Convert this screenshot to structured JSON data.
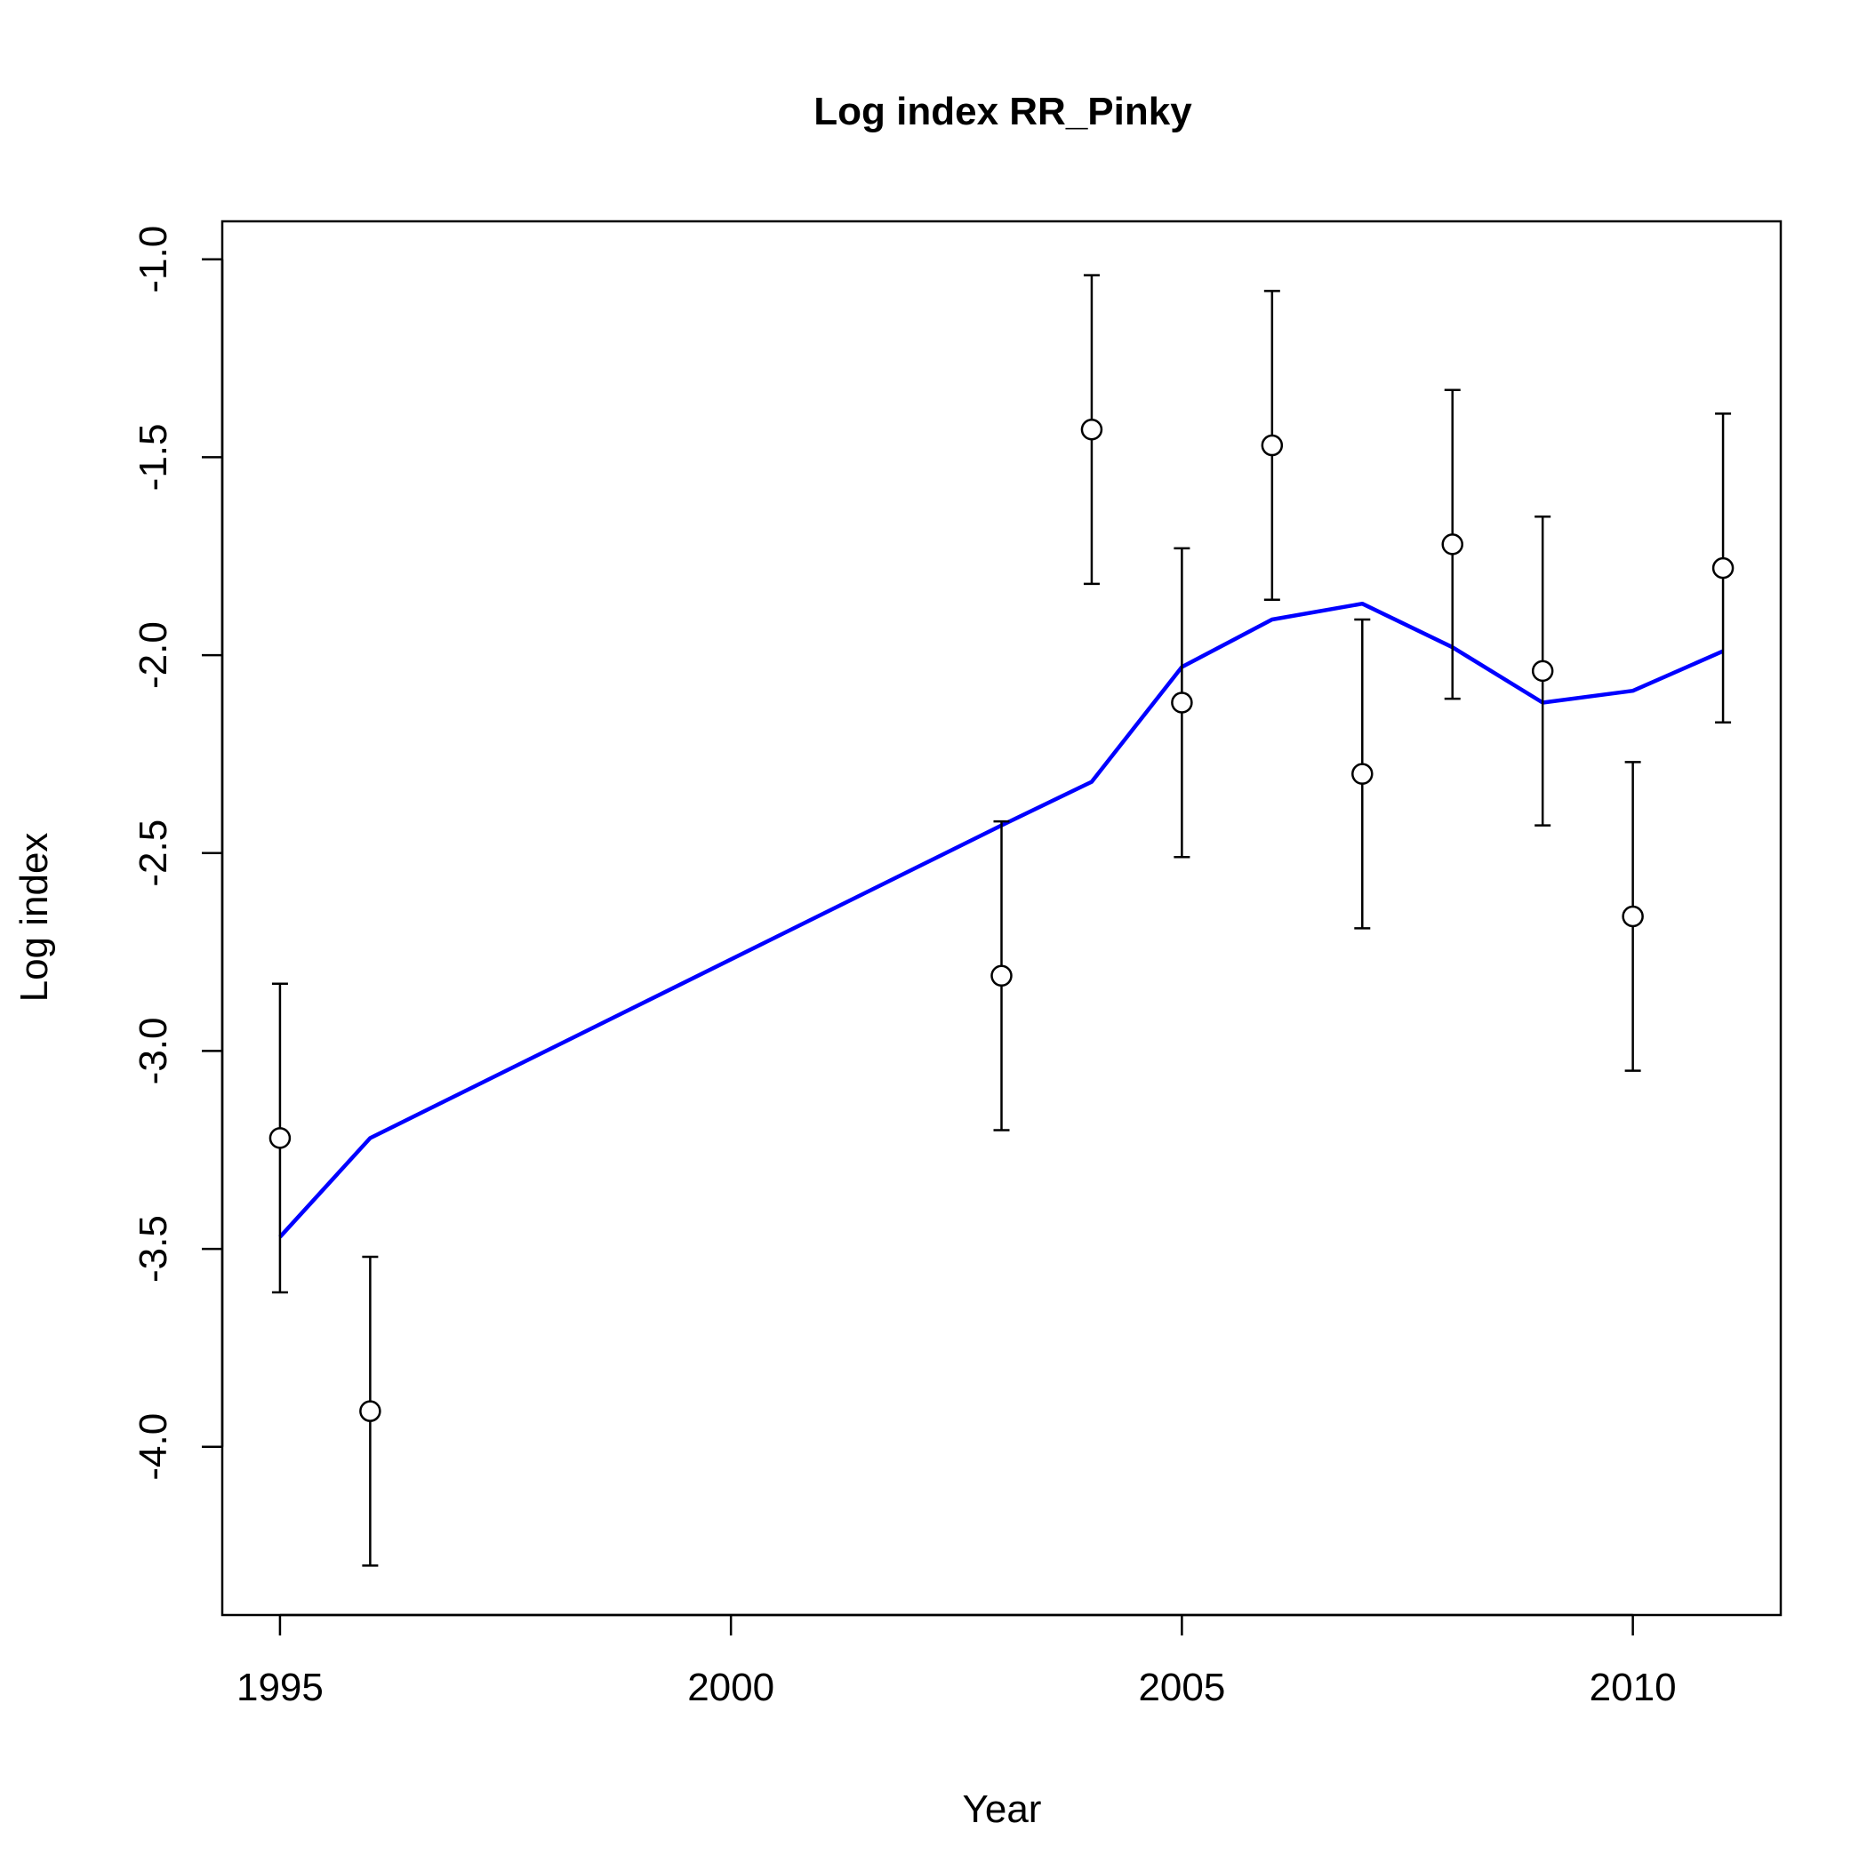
{
  "chart_data": {
    "type": "line",
    "title": "Log index RR_Pinky",
    "xlabel": "Year",
    "ylabel": "Log index",
    "xlim": [
      1994.36,
      2011.64
    ],
    "ylim": [
      -4.425,
      -0.904
    ],
    "x_ticks": [
      1995,
      2000,
      2005,
      2010
    ],
    "x_tick_labels": [
      "1995",
      "2000",
      "2005",
      "2010"
    ],
    "y_ticks": [
      -4.0,
      -3.5,
      -3.0,
      -2.5,
      -2.0,
      -1.5,
      -1.0
    ],
    "y_tick_labels": [
      "-4.0",
      "-3.5",
      "-3.0",
      "-2.5",
      "-2.0",
      "-1.5",
      "-1.0"
    ],
    "grid": false,
    "legend": "none",
    "colors": {
      "fit_line": "#0000ff",
      "observed": "#000000",
      "background": "#ffffff"
    },
    "series": [
      {
        "kind": "points-with-error-bars",
        "x": [
          1995,
          1996,
          2003,
          2004,
          2005,
          2006,
          2007,
          2008,
          2009,
          2010,
          2011
        ],
        "y": [
          -3.22,
          -3.91,
          -2.81,
          -1.43,
          -2.12,
          -1.47,
          -2.3,
          -1.72,
          -2.04,
          -2.66,
          -1.78
        ],
        "lower": [
          -3.61,
          -4.3,
          -3.2,
          -1.82,
          -2.51,
          -1.86,
          -2.69,
          -2.11,
          -2.43,
          -3.05,
          -2.17
        ],
        "upper": [
          -2.83,
          -3.52,
          -2.42,
          -1.04,
          -1.73,
          -1.08,
          -1.91,
          -1.33,
          -1.65,
          -2.27,
          -1.39
        ]
      },
      {
        "kind": "fitted-line",
        "x": [
          1995,
          1996,
          2003,
          2004,
          2005,
          2006,
          2007,
          2008,
          2009,
          2010,
          2011
        ],
        "y": [
          -3.47,
          -3.22,
          -2.43,
          -2.32,
          -2.03,
          -1.91,
          -1.87,
          -1.98,
          -2.12,
          -2.09,
          -1.99
        ]
      }
    ]
  }
}
